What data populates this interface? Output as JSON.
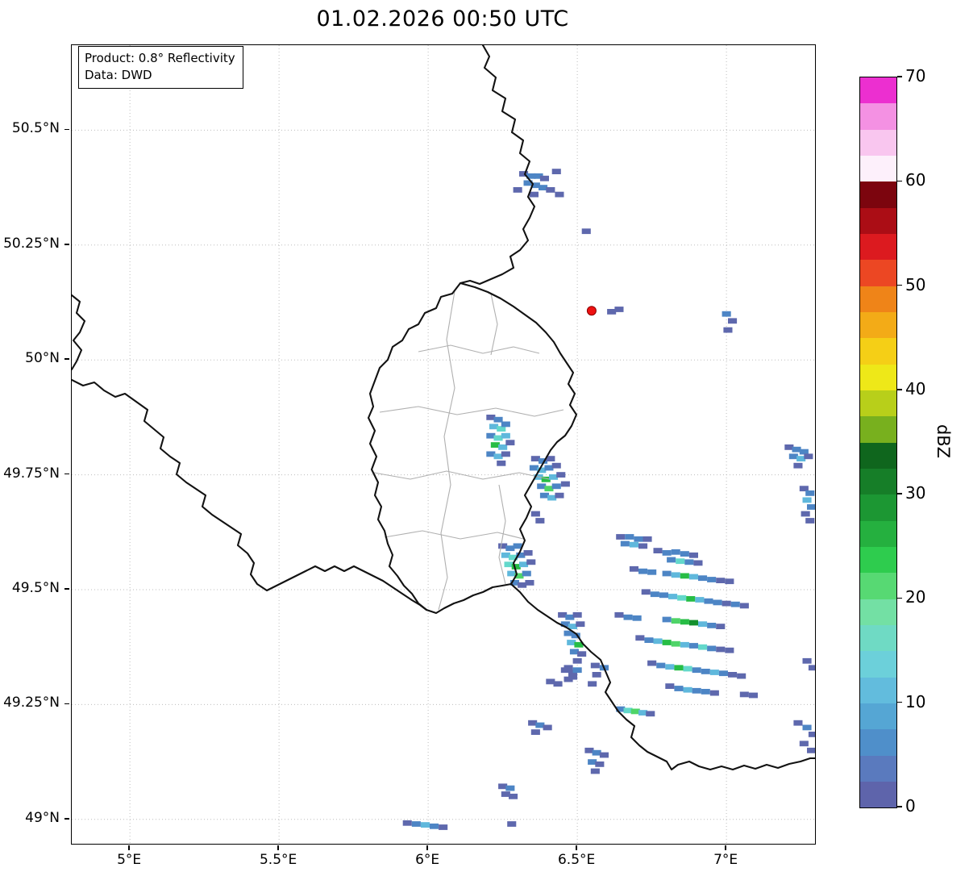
{
  "header": {
    "title": "01.02.2026 00:50 UTC"
  },
  "info_box": {
    "line1": "Product: 0.8° Reflectivity",
    "line2": "Data: DWD"
  },
  "axes": {
    "lon_range": [
      4.805,
      7.297
    ],
    "lat_range": [
      48.947,
      50.685
    ],
    "lon_ticks": [
      {
        "value": 5.0,
        "label": "5°E"
      },
      {
        "value": 5.5,
        "label": "5.5°E"
      },
      {
        "value": 6.0,
        "label": "6°E"
      },
      {
        "value": 6.5,
        "label": "6.5°E"
      },
      {
        "value": 7.0,
        "label": "7°E"
      }
    ],
    "lat_ticks": [
      {
        "value": 50.5,
        "label": "50.5°N"
      },
      {
        "value": 50.25,
        "label": "50.25°N"
      },
      {
        "value": 50.0,
        "label": "50°N"
      },
      {
        "value": 49.75,
        "label": "49.75°N"
      },
      {
        "value": 49.5,
        "label": "49.5°N"
      },
      {
        "value": 49.25,
        "label": "49.25°N"
      },
      {
        "value": 49.0,
        "label": "49°N"
      }
    ]
  },
  "colorbar": {
    "label": "dBZ",
    "min": 0,
    "max": 70,
    "ticks": [
      0,
      10,
      20,
      30,
      40,
      50,
      60,
      70
    ],
    "colors_bottom_to_top": [
      "#5e64ab",
      "#5a7abe",
      "#4f8fca",
      "#55a6d4",
      "#62bcdd",
      "#6cd0da",
      "#6fdac4",
      "#73e0a4",
      "#57d973",
      "#2ecc4e",
      "#25b03f",
      "#1c9733",
      "#167e28",
      "#0f661d",
      "#78b01e",
      "#b8cf1a",
      "#eee818",
      "#f5cf16",
      "#f3ab17",
      "#ef8418",
      "#ec4723",
      "#dc1a1f",
      "#ab0d15",
      "#7c050e",
      "#fdf0fb",
      "#f9c6ef",
      "#f491e3",
      "#ec2fd0"
    ]
  },
  "radar": {
    "site": {
      "lon": 6.548,
      "lat": 50.107,
      "color": "#ee1111",
      "edge_color": "#8b0000"
    },
    "levels": {
      "1": "#5e68ad",
      "2": "#4d85c5",
      "3": "#5fb8dc",
      "4": "#63d8cb",
      "5": "#4fd468",
      "6": "#27bd45",
      "7": "#13902c"
    },
    "cell_size": {
      "dlon": 0.03,
      "dlat": 0.012
    },
    "echoes": [
      [
        6.32,
        50.405,
        1
      ],
      [
        6.345,
        50.4,
        2
      ],
      [
        6.37,
        50.4,
        2
      ],
      [
        6.39,
        50.395,
        1
      ],
      [
        6.335,
        50.385,
        2
      ],
      [
        6.36,
        50.38,
        2
      ],
      [
        6.385,
        50.375,
        2
      ],
      [
        6.41,
        50.37,
        1
      ],
      [
        6.3,
        50.37,
        1
      ],
      [
        6.355,
        50.36,
        1
      ],
      [
        6.43,
        50.41,
        1
      ],
      [
        6.44,
        50.36,
        1
      ],
      [
        6.53,
        50.28,
        1
      ],
      [
        6.615,
        50.105,
        1
      ],
      [
        6.64,
        50.11,
        1
      ],
      [
        7.0,
        50.1,
        2
      ],
      [
        7.02,
        50.085,
        1
      ],
      [
        7.005,
        50.065,
        1
      ],
      [
        6.21,
        49.875,
        1
      ],
      [
        6.235,
        49.87,
        2
      ],
      [
        6.22,
        49.855,
        3
      ],
      [
        6.245,
        49.85,
        4
      ],
      [
        6.26,
        49.86,
        2
      ],
      [
        6.21,
        49.835,
        2
      ],
      [
        6.235,
        49.83,
        4
      ],
      [
        6.26,
        49.835,
        3
      ],
      [
        6.225,
        49.815,
        6
      ],
      [
        6.25,
        49.81,
        3
      ],
      [
        6.275,
        49.82,
        1
      ],
      [
        6.21,
        49.795,
        2
      ],
      [
        6.235,
        49.79,
        3
      ],
      [
        6.26,
        49.795,
        1
      ],
      [
        6.245,
        49.775,
        1
      ],
      [
        6.36,
        49.785,
        1
      ],
      [
        6.385,
        49.78,
        2
      ],
      [
        6.41,
        49.785,
        1
      ],
      [
        6.355,
        49.765,
        2
      ],
      [
        6.38,
        49.76,
        3
      ],
      [
        6.405,
        49.765,
        2
      ],
      [
        6.43,
        49.77,
        1
      ],
      [
        6.37,
        49.745,
        3
      ],
      [
        6.395,
        49.74,
        6
      ],
      [
        6.42,
        49.745,
        3
      ],
      [
        6.445,
        49.75,
        1
      ],
      [
        6.38,
        49.725,
        2
      ],
      [
        6.405,
        49.72,
        5
      ],
      [
        6.43,
        49.725,
        2
      ],
      [
        6.39,
        49.705,
        2
      ],
      [
        6.415,
        49.7,
        3
      ],
      [
        6.44,
        49.705,
        1
      ],
      [
        6.46,
        49.73,
        1
      ],
      [
        6.36,
        49.665,
        1
      ],
      [
        6.375,
        49.65,
        1
      ],
      [
        7.21,
        49.81,
        1
      ],
      [
        7.235,
        49.805,
        2
      ],
      [
        7.26,
        49.8,
        2
      ],
      [
        7.225,
        49.79,
        2
      ],
      [
        7.25,
        49.785,
        3
      ],
      [
        7.275,
        49.79,
        1
      ],
      [
        7.24,
        49.77,
        1
      ],
      [
        7.26,
        49.72,
        1
      ],
      [
        7.28,
        49.71,
        2
      ],
      [
        7.27,
        49.695,
        3
      ],
      [
        7.285,
        49.68,
        2
      ],
      [
        7.265,
        49.665,
        1
      ],
      [
        7.28,
        49.65,
        1
      ],
      [
        6.25,
        49.595,
        1
      ],
      [
        6.275,
        49.59,
        2
      ],
      [
        6.3,
        49.595,
        2
      ],
      [
        6.26,
        49.575,
        3
      ],
      [
        6.285,
        49.57,
        4
      ],
      [
        6.31,
        49.575,
        2
      ],
      [
        6.335,
        49.58,
        1
      ],
      [
        6.27,
        49.555,
        4
      ],
      [
        6.295,
        49.55,
        6
      ],
      [
        6.32,
        49.555,
        3
      ],
      [
        6.345,
        49.56,
        1
      ],
      [
        6.28,
        49.535,
        3
      ],
      [
        6.305,
        49.53,
        5
      ],
      [
        6.33,
        49.535,
        2
      ],
      [
        6.29,
        49.515,
        2
      ],
      [
        6.315,
        49.51,
        1
      ],
      [
        6.34,
        49.515,
        1
      ],
      [
        6.45,
        49.445,
        1
      ],
      [
        6.475,
        49.44,
        2
      ],
      [
        6.5,
        49.445,
        1
      ],
      [
        6.46,
        49.425,
        2
      ],
      [
        6.485,
        49.42,
        3
      ],
      [
        6.51,
        49.425,
        1
      ],
      [
        6.47,
        49.405,
        2
      ],
      [
        6.495,
        49.4,
        2
      ],
      [
        6.48,
        49.385,
        3
      ],
      [
        6.505,
        49.38,
        6
      ],
      [
        6.49,
        49.365,
        2
      ],
      [
        6.515,
        49.36,
        1
      ],
      [
        6.5,
        49.345,
        1
      ],
      [
        6.645,
        49.615,
        1
      ],
      [
        6.675,
        49.615,
        2
      ],
      [
        6.705,
        49.61,
        2
      ],
      [
        6.735,
        49.61,
        1
      ],
      [
        6.66,
        49.6,
        2
      ],
      [
        6.69,
        49.598,
        3
      ],
      [
        6.72,
        49.595,
        1
      ],
      [
        6.77,
        49.585,
        1
      ],
      [
        6.8,
        49.58,
        2
      ],
      [
        6.83,
        49.582,
        2
      ],
      [
        6.86,
        49.578,
        2
      ],
      [
        6.89,
        49.575,
        1
      ],
      [
        6.815,
        49.565,
        2
      ],
      [
        6.845,
        49.562,
        4
      ],
      [
        6.875,
        49.56,
        2
      ],
      [
        6.905,
        49.558,
        1
      ],
      [
        6.69,
        49.545,
        1
      ],
      [
        6.72,
        49.54,
        2
      ],
      [
        6.75,
        49.538,
        2
      ],
      [
        6.8,
        49.535,
        2
      ],
      [
        6.83,
        49.532,
        3
      ],
      [
        6.86,
        49.53,
        6
      ],
      [
        6.89,
        49.528,
        3
      ],
      [
        6.92,
        49.525,
        2
      ],
      [
        6.95,
        49.522,
        2
      ],
      [
        6.98,
        49.52,
        1
      ],
      [
        7.01,
        49.518,
        1
      ],
      [
        6.73,
        49.495,
        1
      ],
      [
        6.76,
        49.49,
        2
      ],
      [
        6.79,
        49.488,
        2
      ],
      [
        6.82,
        49.485,
        3
      ],
      [
        6.85,
        49.482,
        4
      ],
      [
        6.88,
        49.48,
        6
      ],
      [
        6.91,
        49.478,
        3
      ],
      [
        6.94,
        49.475,
        2
      ],
      [
        6.97,
        49.472,
        2
      ],
      [
        7.0,
        49.47,
        1
      ],
      [
        7.03,
        49.468,
        2
      ],
      [
        7.06,
        49.465,
        1
      ],
      [
        6.64,
        49.445,
        1
      ],
      [
        6.67,
        49.44,
        2
      ],
      [
        6.7,
        49.438,
        2
      ],
      [
        6.8,
        49.435,
        2
      ],
      [
        6.83,
        49.432,
        5
      ],
      [
        6.86,
        49.43,
        6
      ],
      [
        6.89,
        49.428,
        7
      ],
      [
        6.92,
        49.425,
        3
      ],
      [
        6.95,
        49.422,
        2
      ],
      [
        6.98,
        49.42,
        1
      ],
      [
        6.71,
        49.395,
        1
      ],
      [
        6.74,
        49.39,
        2
      ],
      [
        6.77,
        49.388,
        3
      ],
      [
        6.8,
        49.385,
        6
      ],
      [
        6.83,
        49.382,
        5
      ],
      [
        6.86,
        49.38,
        3
      ],
      [
        6.89,
        49.378,
        2
      ],
      [
        6.92,
        49.375,
        4
      ],
      [
        6.95,
        49.372,
        2
      ],
      [
        6.98,
        49.37,
        1
      ],
      [
        7.01,
        49.368,
        1
      ],
      [
        6.75,
        49.34,
        1
      ],
      [
        6.78,
        49.335,
        2
      ],
      [
        6.81,
        49.332,
        3
      ],
      [
        6.84,
        49.33,
        6
      ],
      [
        6.87,
        49.328,
        4
      ],
      [
        6.9,
        49.325,
        2
      ],
      [
        6.93,
        49.322,
        2
      ],
      [
        6.96,
        49.32,
        3
      ],
      [
        6.99,
        49.318,
        2
      ],
      [
        7.02,
        49.315,
        1
      ],
      [
        7.05,
        49.312,
        1
      ],
      [
        6.81,
        49.29,
        1
      ],
      [
        6.84,
        49.285,
        2
      ],
      [
        6.87,
        49.282,
        3
      ],
      [
        6.9,
        49.28,
        2
      ],
      [
        6.93,
        49.278,
        2
      ],
      [
        6.96,
        49.275,
        1
      ],
      [
        7.06,
        49.272,
        1
      ],
      [
        7.09,
        49.27,
        1
      ],
      [
        6.56,
        49.335,
        1
      ],
      [
        6.59,
        49.33,
        2
      ],
      [
        6.565,
        49.315,
        1
      ],
      [
        6.55,
        49.295,
        1
      ],
      [
        6.46,
        49.325,
        1
      ],
      [
        6.485,
        49.32,
        1
      ],
      [
        6.47,
        49.305,
        1
      ],
      [
        6.47,
        49.33,
        1
      ],
      [
        6.5,
        49.325,
        2
      ],
      [
        6.485,
        49.31,
        1
      ],
      [
        6.41,
        49.3,
        1
      ],
      [
        6.435,
        49.295,
        1
      ],
      [
        6.645,
        49.24,
        2
      ],
      [
        6.67,
        49.237,
        4
      ],
      [
        6.695,
        49.235,
        5
      ],
      [
        6.72,
        49.232,
        3
      ],
      [
        6.745,
        49.23,
        1
      ],
      [
        7.24,
        49.21,
        1
      ],
      [
        7.27,
        49.2,
        2
      ],
      [
        7.29,
        49.185,
        1
      ],
      [
        7.26,
        49.165,
        1
      ],
      [
        7.285,
        49.15,
        1
      ],
      [
        7.27,
        49.345,
        1
      ],
      [
        7.29,
        49.33,
        1
      ],
      [
        6.54,
        49.15,
        1
      ],
      [
        6.565,
        49.145,
        2
      ],
      [
        6.59,
        49.14,
        1
      ],
      [
        6.55,
        49.125,
        2
      ],
      [
        6.575,
        49.12,
        1
      ],
      [
        6.56,
        49.105,
        1
      ],
      [
        6.35,
        49.21,
        1
      ],
      [
        6.375,
        49.205,
        2
      ],
      [
        6.4,
        49.2,
        1
      ],
      [
        6.36,
        49.19,
        1
      ],
      [
        6.25,
        49.072,
        1
      ],
      [
        6.275,
        49.068,
        2
      ],
      [
        6.26,
        49.055,
        1
      ],
      [
        6.285,
        49.05,
        1
      ],
      [
        5.93,
        48.992,
        1
      ],
      [
        5.96,
        48.99,
        2
      ],
      [
        5.99,
        48.988,
        3
      ],
      [
        6.02,
        48.985,
        2
      ],
      [
        6.05,
        48.983,
        1
      ],
      [
        6.28,
        48.99,
        1
      ]
    ]
  }
}
